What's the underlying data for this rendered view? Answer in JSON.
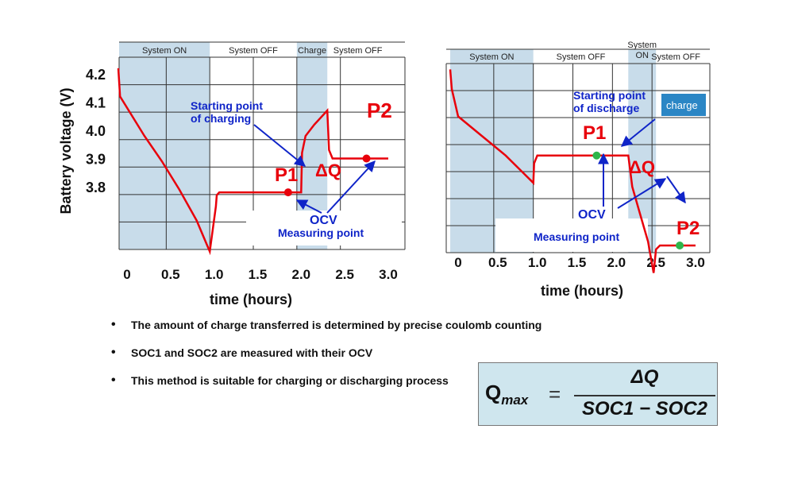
{
  "chart_data": [
    {
      "type": "line",
      "ylabel": "Battery voltage (V)",
      "xlabel": "time (hours)",
      "x_ticks": [
        "0",
        "0.5",
        "1.0",
        "1.5",
        "2.0",
        "2.5",
        "3.0"
      ],
      "y_ticks": [
        "4.2",
        "4.1",
        "4.0",
        "3.9",
        "3.8"
      ],
      "xlim": [
        -0.1,
        3.0
      ],
      "ylim": [
        3.55,
        4.25
      ],
      "grid": true,
      "phases": [
        {
          "label": "System ON",
          "x0": -0.1,
          "x1": 0.95,
          "shaded": true
        },
        {
          "label": "System OFF",
          "x0": 0.95,
          "x1": 1.95,
          "shaded": false
        },
        {
          "label": "Charge",
          "x0": 1.95,
          "x1": 2.3,
          "shaded": true
        },
        {
          "label": "System OFF",
          "x0": 2.3,
          "x1": 3.0,
          "shaded": false
        }
      ],
      "series": [
        {
          "color": "#e8000b",
          "x": [
            -0.1,
            -0.08,
            0.0,
            0.2,
            0.4,
            0.6,
            0.8,
            0.95,
            1.02,
            1.03,
            1.06,
            1.15,
            1.5,
            2.0,
            2.01,
            2.05,
            2.15,
            2.3,
            2.32,
            2.36,
            2.6,
            3.0
          ],
          "y": [
            4.22,
            4.12,
            4.08,
            3.98,
            3.89,
            3.79,
            3.68,
            3.57,
            3.73,
            3.77,
            3.78,
            3.78,
            3.78,
            3.78,
            3.92,
            3.98,
            4.02,
            4.07,
            3.93,
            3.9,
            3.9,
            3.9
          ]
        }
      ],
      "markers": [
        {
          "label": "P1",
          "x": 1.85,
          "y": 3.78,
          "color": "#e8000b"
        },
        {
          "label": "P2",
          "x": 2.75,
          "y": 3.9,
          "color": "#e8000b"
        }
      ],
      "annotations": {
        "start": "Starting point of charging",
        "delta": "ΔQ",
        "ocv": "OCV",
        "measuring": "Measuring point"
      }
    },
    {
      "type": "line",
      "xlabel": "time (hours)",
      "x_ticks": [
        "0",
        "0.5",
        "1.0",
        "1.5",
        "2.0",
        "2.5",
        "3.0"
      ],
      "xlim": [
        -0.1,
        3.0
      ],
      "ylim": [
        3.55,
        4.25
      ],
      "grid": true,
      "phases": [
        {
          "label": "System ON",
          "x0": -0.1,
          "x1": 0.95,
          "shaded": true
        },
        {
          "label": "System OFF",
          "x0": 0.95,
          "x1": 2.15,
          "shaded": false
        },
        {
          "label": "System ON",
          "x0": 2.15,
          "x1": 2.5,
          "shaded": true
        },
        {
          "label": "System OFF",
          "x0": 2.5,
          "x1": 3.0,
          "shaded": false
        }
      ],
      "series": [
        {
          "color": "#e8000b",
          "x": [
            -0.1,
            -0.08,
            0.0,
            0.3,
            0.6,
            0.8,
            0.95,
            0.96,
            1.0,
            1.5,
            2.0,
            2.1,
            2.15,
            2.2,
            2.3,
            2.4,
            2.47,
            2.5,
            2.55,
            2.7,
            3.0
          ],
          "y": [
            4.12,
            4.07,
            4.0,
            3.95,
            3.9,
            3.86,
            3.83,
            3.88,
            3.9,
            3.9,
            3.9,
            3.9,
            3.9,
            3.82,
            3.75,
            3.68,
            3.6,
            3.66,
            3.67,
            3.67,
            3.67
          ]
        }
      ],
      "markers": [
        {
          "label": "P1",
          "x": 1.75,
          "y": 3.9,
          "color": "#2fb54a"
        },
        {
          "label": "P2",
          "x": 2.8,
          "y": 3.67,
          "color": "#2fb54a"
        }
      ],
      "annotations": {
        "start": "Starting point of discharge",
        "delta": "ΔQ",
        "ocv": "OCV",
        "measuring": "Measuring point",
        "legend_fragment": "charge"
      }
    }
  ],
  "bullets": [
    "The amount of charge transferred is determined by precise coulomb counting",
    "SOC1 and SOC2 are measured with their OCV",
    "This method is suitable for charging or discharging process"
  ],
  "formula": {
    "lhs": "Q",
    "lhs_sub": "max",
    "eq": "=",
    "numerator": "ΔQ",
    "denominator": "SOC1 − SOC2"
  },
  "colors": {
    "shade": "#c8dcea",
    "curve": "#e8000b",
    "annotation": "#0f24c8",
    "p1p2_text": "#e8000b",
    "green_marker": "#2fb54a",
    "badge": "#2b86c5",
    "formula_bg": "#cfe6ee"
  }
}
